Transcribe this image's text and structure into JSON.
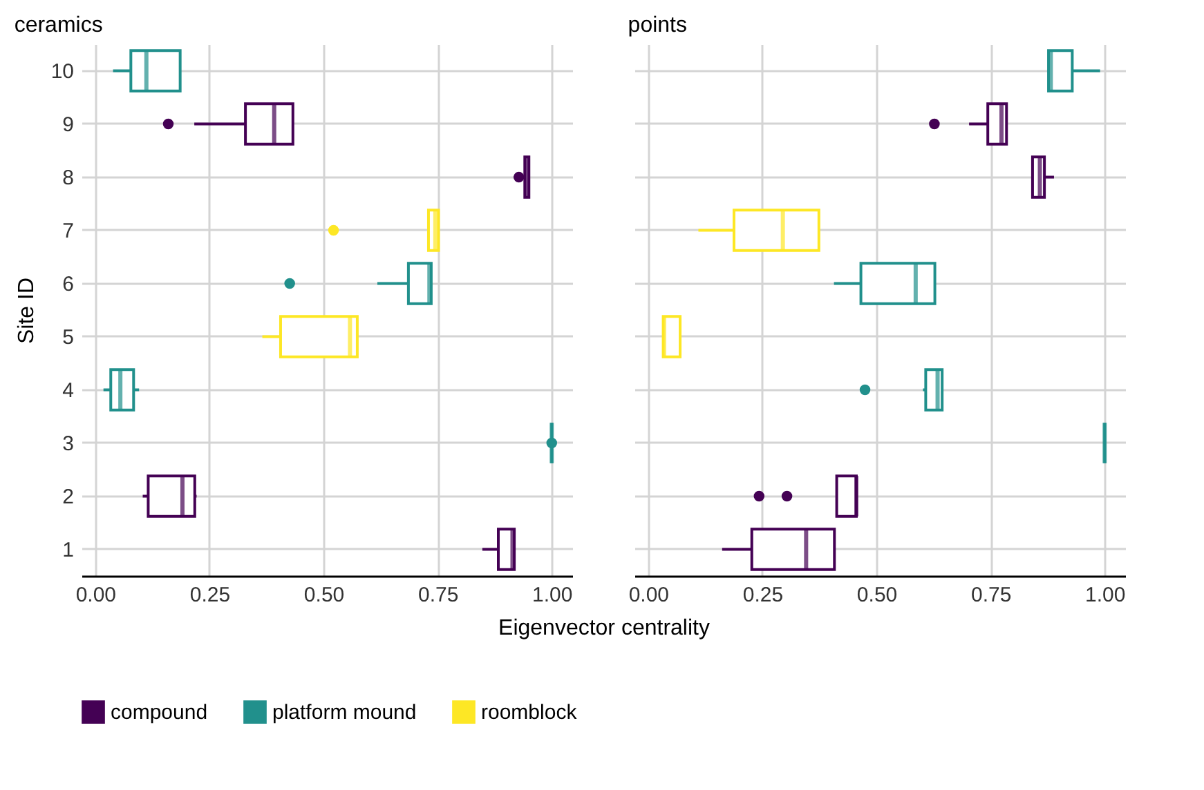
{
  "chart_data": [
    {
      "type": "box",
      "title": "ceramics",
      "xlabel": "Eigenvector centrality",
      "ylabel": "Site ID",
      "orientation": "horizontal",
      "categories": [
        "10",
        "9",
        "8",
        "7",
        "6",
        "5",
        "4",
        "3",
        "2",
        "1"
      ],
      "xlim": [
        -0.03,
        1.045
      ],
      "xticks": [
        {
          "value": 0,
          "label": "0.00"
        },
        {
          "value": 0.25,
          "label": "0.25"
        },
        {
          "value": 0.5,
          "label": "0.50"
        },
        {
          "value": 0.75,
          "label": "0.75"
        },
        {
          "value": 1,
          "label": "1.00"
        }
      ],
      "grid": true,
      "legend": "bottom",
      "series": [
        {
          "name": "compound",
          "color": "#440154",
          "boxes": [
            null,
            {
              "low": 0.217,
              "q1": 0.329,
              "median": 0.392,
              "q3": 0.433,
              "high": 0.433,
              "outliers": [
                0.16
              ]
            },
            {
              "low": 0.941,
              "q1": 0.941,
              "median": 0.945,
              "q3": 0.95,
              "high": 0.95,
              "outliers": [
                0.928
              ]
            },
            null,
            null,
            null,
            null,
            null,
            {
              "low": 0.104,
              "q1": 0.116,
              "median": 0.191,
              "q3": 0.218,
              "high": 0.222
            },
            {
              "low": 0.848,
              "q1": 0.883,
              "median": 0.914,
              "q3": 0.918,
              "high": 0.918
            }
          ]
        },
        {
          "name": "platform mound",
          "color": "#21908c",
          "boxes": [
            {
              "low": 0.039,
              "q1": 0.078,
              "median": 0.112,
              "q3": 0.186,
              "high": 0.186
            },
            null,
            null,
            null,
            {
              "low": 0.618,
              "q1": 0.686,
              "median": 0.732,
              "q3": 0.736,
              "high": 0.736,
              "outliers": [
                0.426
              ]
            },
            null,
            {
              "low": 0.018,
              "q1": 0.034,
              "median": 0.055,
              "q3": 0.084,
              "high": 0.096
            },
            {
              "low": 1,
              "q1": 1,
              "median": 1,
              "q3": 1,
              "high": 1,
              "outliers": [
                1
              ]
            },
            null,
            null
          ]
        },
        {
          "name": "roomblock",
          "color": "#fde725",
          "boxes": [
            null,
            null,
            null,
            {
              "low": 0.73,
              "q1": 0.73,
              "median": 0.745,
              "q3": 0.752,
              "high": 0.752,
              "outliers": [
                0.522
              ]
            },
            null,
            {
              "low": 0.366,
              "q1": 0.406,
              "median": 0.558,
              "q3": 0.574,
              "high": 0.574
            },
            null,
            null,
            null,
            null
          ]
        }
      ]
    },
    {
      "type": "box",
      "title": "points",
      "orientation": "horizontal",
      "categories": [
        "10",
        "9",
        "8",
        "7",
        "6",
        "5",
        "4",
        "3",
        "2",
        "1"
      ],
      "tick_labels": "x",
      "xlim": [
        -0.03,
        1.045
      ],
      "xticks": [
        {
          "value": 0,
          "label": "0.00"
        },
        {
          "value": 0.25,
          "label": "0.25"
        },
        {
          "value": 0.5,
          "label": "0.50"
        },
        {
          "value": 0.75,
          "label": "0.75"
        },
        {
          "value": 1,
          "label": "1.00"
        }
      ],
      "grid": true,
      "series": [
        {
          "name": "compound",
          "color": "#440154",
          "boxes": [
            null,
            {
              "low": 0.703,
              "q1": 0.744,
              "median": 0.774,
              "q3": 0.785,
              "high": 0.785,
              "outliers": [
                0.627
              ]
            },
            {
              "low": 0.842,
              "q1": 0.842,
              "median": 0.858,
              "q3": 0.868,
              "high": 0.889
            },
            null,
            null,
            null,
            null,
            null,
            {
              "low": 0.413,
              "q1": 0.413,
              "median": 0.456,
              "q3": 0.456,
              "high": 0.456,
              "outliers": [
                0.243,
                0.304
              ]
            },
            {
              "low": 0.162,
              "q1": 0.227,
              "median": 0.346,
              "q3": 0.408,
              "high": 0.408
            }
          ]
        },
        {
          "name": "platform mound",
          "color": "#21908c",
          "boxes": [
            {
              "low": 0.875,
              "q1": 0.877,
              "median": 0.882,
              "q3": 0.929,
              "high": 0.99
            },
            null,
            null,
            null,
            {
              "low": 0.407,
              "q1": 0.466,
              "median": 0.586,
              "q3": 0.628,
              "high": 0.628
            },
            null,
            {
              "low": 0.602,
              "q1": 0.608,
              "median": 0.634,
              "q3": 0.644,
              "high": 0.644,
              "outliers": [
                0.475
              ]
            },
            {
              "low": 1,
              "q1": 1,
              "median": 1,
              "q3": 1,
              "high": 1
            },
            null,
            null
          ]
        },
        {
          "name": "roomblock",
          "color": "#fde725",
          "boxes": [
            null,
            null,
            null,
            {
              "low": 0.11,
              "q1": 0.188,
              "median": 0.295,
              "q3": 0.374,
              "high": 0.374
            },
            null,
            {
              "low": 0.033,
              "q1": 0.033,
              "median": 0.035,
              "q3": 0.07,
              "high": 0.07
            },
            null,
            null,
            null,
            null
          ]
        }
      ]
    }
  ]
}
